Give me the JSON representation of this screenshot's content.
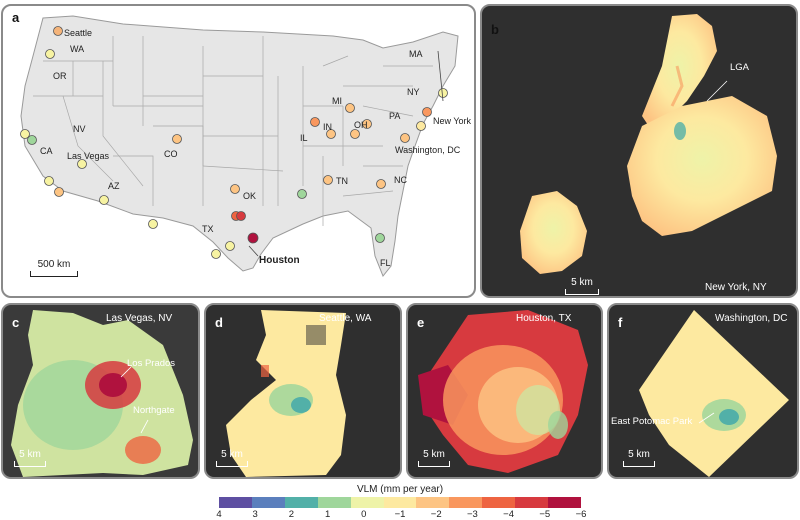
{
  "panel_a": {
    "label": "a",
    "scale_bar": "500 km",
    "cities": [
      {
        "name": "Seattle",
        "color": "#f5b47a"
      },
      {
        "name": "WA"
      },
      {
        "name": "OR"
      },
      {
        "name": "NV"
      },
      {
        "name": "CA"
      },
      {
        "name": "Las Vegas"
      },
      {
        "name": "AZ"
      },
      {
        "name": "CO"
      },
      {
        "name": "TX"
      },
      {
        "name": "OK"
      },
      {
        "name": "Houston"
      },
      {
        "name": "MI"
      },
      {
        "name": "IL"
      },
      {
        "name": "IN"
      },
      {
        "name": "OH"
      },
      {
        "name": "TN"
      },
      {
        "name": "NC"
      },
      {
        "name": "PA"
      },
      {
        "name": "NY"
      },
      {
        "name": "MA"
      },
      {
        "name": "New York"
      },
      {
        "name": "Washington, DC"
      },
      {
        "name": "FL"
      }
    ]
  },
  "panel_b": {
    "label": "b",
    "title": "New York, NY",
    "feature": "LGA",
    "scale_bar": "5 km"
  },
  "panel_c": {
    "label": "c",
    "title": "Las Vegas, NV",
    "features": [
      "Los Prados",
      "Northgate"
    ],
    "scale_bar": "5 km"
  },
  "panel_d": {
    "label": "d",
    "title": "Seattle, WA",
    "scale_bar": "5 km"
  },
  "panel_e": {
    "label": "e",
    "title": "Houston, TX",
    "scale_bar": "5 km"
  },
  "panel_f": {
    "label": "f",
    "title": "Washington, DC",
    "feature": "East Potomac Park",
    "scale_bar": "5 km"
  },
  "legend": {
    "title": "VLM (mm per year)",
    "ticks": [
      "4",
      "3",
      "2",
      "1",
      "0",
      "−1",
      "−2",
      "−3",
      "−4",
      "−5",
      "−6"
    ],
    "colors": [
      "#5e4fa2",
      "#5b7fbd",
      "#52b0a8",
      "#9fd69b",
      "#eef3a8",
      "#fde9a0",
      "#fdc483",
      "#f9975e",
      "#ee6441",
      "#d73a3f",
      "#b0123e"
    ]
  }
}
